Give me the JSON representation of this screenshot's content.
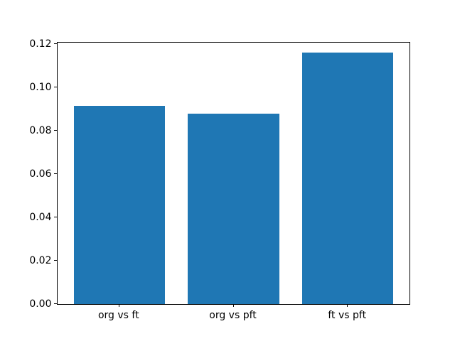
{
  "figure": {
    "background": "#ffffff",
    "plot_background": "#ffffff",
    "spine_color": "#000000",
    "text_color": "#000000"
  },
  "chart_data": {
    "type": "bar",
    "categories": [
      "org vs ft",
      "org vs pft",
      "ft vs pft"
    ],
    "values": [
      0.0915,
      0.088,
      0.116
    ],
    "title": "",
    "xlabel": "",
    "ylabel": "",
    "ylim": [
      0,
      0.1207
    ],
    "xlim": [
      -0.54,
      2.54
    ],
    "yticks": [
      0.0,
      0.02,
      0.04,
      0.06,
      0.08,
      0.1,
      0.12
    ],
    "ytick_labels": [
      "0.00",
      "0.02",
      "0.04",
      "0.06",
      "0.08",
      "0.10",
      "0.12"
    ],
    "bar_width_units": 0.8,
    "bar_color": "#1f77b4",
    "grid": false,
    "legend": "none"
  }
}
